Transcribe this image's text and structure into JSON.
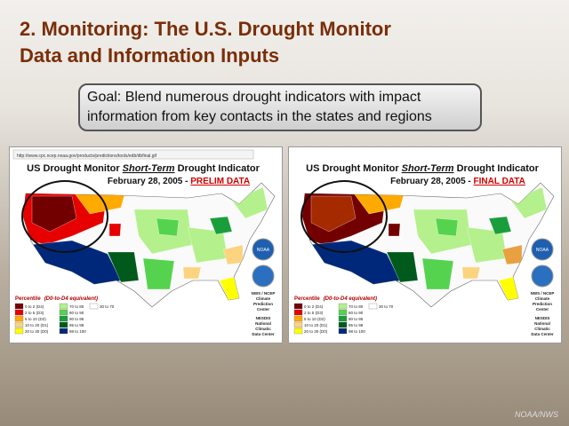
{
  "slide": {
    "title_line1": "2. Monitoring:  The U.S. Drought Monitor",
    "title_line2": "Data and Information Inputs",
    "goal": "Goal: Blend numerous drought indicators with impact information from key contacts in the states and regions",
    "panels": [
      {
        "url": "http://www.cpc.ncep.noaa.gov/products/predictions/tools/edb/dbfinal.gif",
        "heading_prefix": "US Drought Monitor ",
        "heading_emphasis": "Short-Term",
        "heading_suffix": " Drought Indicator",
        "date": "February 28, 2005 - ",
        "status": "PRELIM DATA"
      },
      {
        "heading_prefix": "US Drought Monitor ",
        "heading_emphasis": "Short-Term",
        "heading_suffix": " Drought Indicator",
        "date": "February 28, 2005 - ",
        "status": "FINAL DATA"
      }
    ],
    "legend": {
      "title": "Percentile",
      "subtitle": "(D0-to-D4 equivalent)",
      "dry": [
        "0 to 2 (D4)",
        "2 to 5 (D3)",
        "5 to 10 (D2)",
        "10 to 20 (D1)",
        "20 to 30 (D0)"
      ],
      "wet": [
        "70 to 80",
        "80 to 90",
        "90 to 95",
        "95 to 98",
        "98 to 100"
      ],
      "neutral": "30 to 70"
    },
    "agency_top": [
      "NWS / NCEP",
      "Climate",
      "Prediction",
      "Center"
    ],
    "agency_bottom": [
      "NESDIS",
      "National",
      "Climatic",
      "Data Center"
    ],
    "logo_label": "NOAA",
    "footer": "NOAA/NWS"
  }
}
